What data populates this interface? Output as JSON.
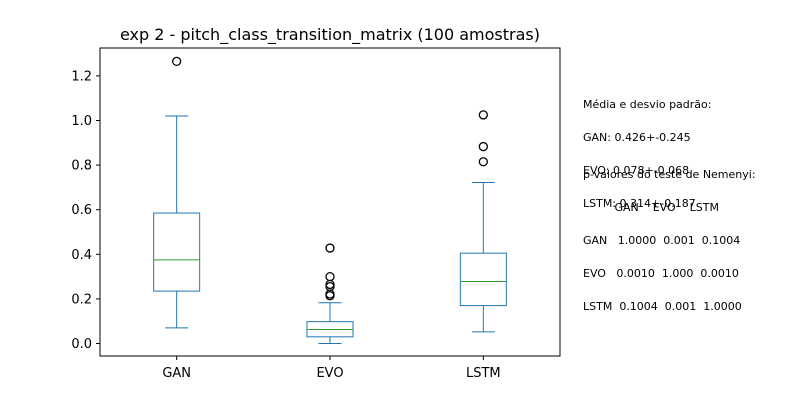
{
  "chart_data": {
    "type": "box",
    "title": "exp 2 - pitch_class_transition_matrix (100 amostras)",
    "xlabel": "",
    "ylabel": "",
    "ylim": [
      -0.056,
      1.325
    ],
    "yticks": [
      0.0,
      0.2,
      0.4,
      0.6,
      0.8,
      1.0,
      1.2
    ],
    "ytick_labels": [
      "0.0",
      "0.2",
      "0.4",
      "0.6",
      "0.8",
      "1.0",
      "1.2"
    ],
    "categories": [
      "GAN",
      "EVO",
      "LSTM"
    ],
    "grid": false,
    "boxes": [
      {
        "label": "GAN",
        "whisker_low": 0.07,
        "q1": 0.235,
        "median": 0.375,
        "q3": 0.585,
        "whisker_high": 1.02,
        "outliers": [
          1.265
        ]
      },
      {
        "label": "EVO",
        "whisker_low": 0.0,
        "q1": 0.03,
        "median": 0.063,
        "q3": 0.098,
        "whisker_high": 0.183,
        "outliers": [
          0.214,
          0.222,
          0.255,
          0.265,
          0.3,
          0.428
        ]
      },
      {
        "label": "LSTM",
        "whisker_low": 0.052,
        "q1": 0.17,
        "median": 0.278,
        "q3": 0.405,
        "whisker_high": 0.722,
        "outliers": [
          0.815,
          0.883,
          1.025
        ]
      }
    ],
    "colors": {
      "box": "#1f77b4",
      "median": "#2ca02c",
      "outlier": "#000000"
    }
  },
  "stats_text": [
    "Média e desvio padrão:",
    "GAN: 0.426+-0.245",
    "EVO: 0.078+-0.068",
    "LSTM: 0.314+-0.187"
  ],
  "pvalues_text": [
    "p-valores do teste de Nemenyi:",
    "         GAN    EVO    LSTM",
    "GAN   1.0000  0.001  0.1004",
    "EVO   0.0010  1.000  0.0010",
    "LSTM  0.1004  0.001  1.0000"
  ]
}
